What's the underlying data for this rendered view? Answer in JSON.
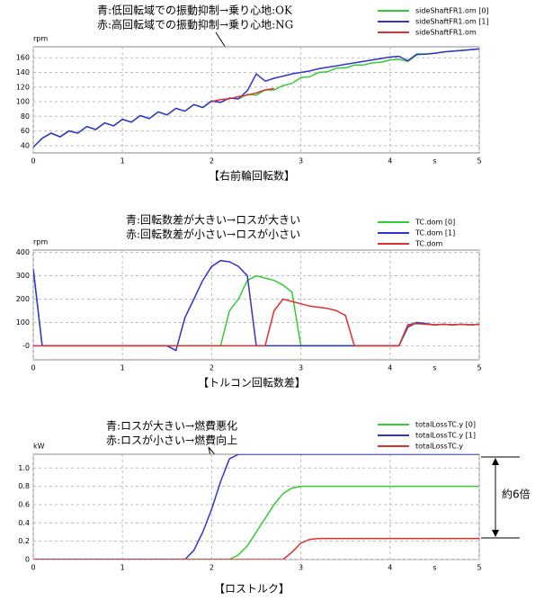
{
  "chart_data": [
    {
      "type": "line",
      "y_label": "rpm",
      "x_label": "s",
      "annotations": [
        "青:低回転域での振動抑制→乗り心地:OK",
        "赤:高回転域での振動抑制→乗り心地:NG"
      ],
      "caption": "【右前輪回転数】",
      "xlim": [
        0,
        5
      ],
      "xticks": [
        0,
        1,
        2,
        3,
        4,
        5
      ],
      "ylim": [
        30,
        175
      ],
      "yticks": [
        40,
        60,
        80,
        100,
        120,
        140,
        160
      ],
      "grid": true,
      "legend": "upper right",
      "x": [
        0,
        0.1,
        0.2,
        0.3,
        0.4,
        0.5,
        0.6,
        0.7,
        0.8,
        0.9,
        1,
        1.1,
        1.2,
        1.3,
        1.4,
        1.5,
        1.6,
        1.7,
        1.8,
        1.9,
        2,
        2.1,
        2.2,
        2.3,
        2.4,
        2.5,
        2.6,
        2.7,
        2.8,
        2.9,
        3,
        3.1,
        3.2,
        3.3,
        3.4,
        3.5,
        3.6,
        3.7,
        3.8,
        3.9,
        4,
        4.1,
        4.2,
        4.3,
        4.4,
        4.5,
        4.6,
        4.7,
        4.8,
        4.9,
        5
      ],
      "series": [
        {
          "name": "sideShaftFR1.om [0]",
          "color": "#33cc33",
          "values": [
            38,
            50,
            57,
            52,
            60,
            57,
            66,
            62,
            71,
            67,
            76,
            72,
            81,
            77,
            86,
            82,
            91,
            87,
            96,
            92,
            101,
            99,
            105,
            104,
            110,
            109,
            116,
            116,
            122,
            125,
            133,
            134,
            140,
            141,
            146,
            146,
            150,
            150,
            153,
            154,
            157,
            158,
            155,
            164,
            165,
            166,
            168,
            169,
            170,
            171,
            172
          ]
        },
        {
          "name": "sideShaftFR1.om [1]",
          "color": "#3333cc",
          "values": [
            38,
            50,
            57,
            52,
            60,
            57,
            66,
            62,
            71,
            67,
            76,
            72,
            81,
            77,
            86,
            82,
            91,
            87,
            96,
            92,
            101,
            99,
            105,
            104,
            115,
            138,
            128,
            132,
            135,
            138,
            140,
            142,
            145,
            147,
            149,
            151,
            153,
            155,
            157,
            159,
            161,
            162,
            156,
            165,
            165,
            166,
            168,
            169,
            170,
            171,
            172
          ]
        },
        {
          "name": "sideShaftFR1.om",
          "color": "#e03030",
          "values": [
            null,
            null,
            null,
            null,
            null,
            null,
            null,
            null,
            null,
            null,
            null,
            null,
            null,
            null,
            null,
            null,
            null,
            null,
            null,
            null,
            100,
            103,
            104,
            107,
            109,
            112,
            116,
            118,
            null,
            null,
            null,
            null,
            null,
            null,
            null,
            null,
            null,
            null,
            null,
            null,
            null,
            null,
            null,
            null,
            null,
            null,
            null,
            null,
            null,
            null,
            null
          ]
        }
      ]
    },
    {
      "type": "line",
      "y_label": "rpm",
      "x_label": "s",
      "annotations": [
        "青:回転数差が大きい→ロスが大きい",
        "赤:回転数差が小さい→ロスが小さい"
      ],
      "caption": "【トルコン回転数差】",
      "xlim": [
        0,
        5
      ],
      "xticks": [
        0,
        1,
        2,
        3,
        4,
        5
      ],
      "ylim": [
        -60,
        410
      ],
      "yticks": [
        {
          "value": 0,
          "label": "-0"
        },
        100,
        200,
        300,
        400
      ],
      "grid": true,
      "legend": "upper right",
      "x": [
        0,
        0.1,
        0.2,
        0.3,
        0.4,
        0.5,
        0.6,
        0.7,
        0.8,
        0.9,
        1,
        1.1,
        1.2,
        1.3,
        1.4,
        1.5,
        1.6,
        1.7,
        1.8,
        1.9,
        2,
        2.1,
        2.2,
        2.3,
        2.4,
        2.5,
        2.6,
        2.7,
        2.8,
        2.9,
        3,
        3.1,
        3.2,
        3.3,
        3.4,
        3.5,
        3.6,
        3.7,
        3.8,
        3.9,
        4,
        4.1,
        4.2,
        4.3,
        4.4,
        4.5,
        4.6,
        4.7,
        4.8,
        4.9,
        5
      ],
      "series": [
        {
          "name": "TC.dom [0]",
          "color": "#33cc33",
          "values": [
            330,
            0,
            0,
            0,
            0,
            0,
            0,
            0,
            0,
            0,
            0,
            0,
            0,
            0,
            0,
            0,
            0,
            0,
            0,
            0,
            0,
            0,
            150,
            200,
            280,
            300,
            290,
            280,
            260,
            230,
            0,
            0,
            0,
            0,
            0,
            0,
            0,
            0,
            0,
            0,
            0,
            0,
            90,
            100,
            95,
            90,
            92,
            90,
            92,
            90,
            92
          ]
        },
        {
          "name": "TC.dom [1]",
          "color": "#3333cc",
          "values": [
            330,
            0,
            0,
            0,
            0,
            0,
            0,
            0,
            0,
            0,
            0,
            0,
            0,
            0,
            0,
            0,
            -20,
            120,
            200,
            280,
            340,
            365,
            360,
            340,
            300,
            0,
            0,
            0,
            0,
            0,
            0,
            0,
            0,
            0,
            0,
            0,
            0,
            0,
            0,
            0,
            0,
            0,
            80,
            100,
            95,
            90,
            92,
            90,
            92,
            90,
            92
          ]
        },
        {
          "name": "TC.dom",
          "color": "#e03030",
          "values": [
            0,
            0,
            0,
            0,
            0,
            0,
            0,
            0,
            0,
            0,
            0,
            0,
            0,
            0,
            0,
            0,
            0,
            0,
            0,
            0,
            0,
            0,
            0,
            0,
            0,
            0,
            0,
            150,
            200,
            190,
            180,
            170,
            165,
            160,
            150,
            130,
            0,
            0,
            0,
            0,
            0,
            0,
            90,
            95,
            92,
            90,
            92,
            90,
            92,
            90,
            92
          ]
        }
      ]
    },
    {
      "type": "line",
      "y_label": "kW",
      "x_label": "s",
      "annotations": [
        "青:ロスが大きい→燃費悪化",
        "赤:ロスが小さい→燃費向上"
      ],
      "caption": "【ロストルク】",
      "side_label": "約6倍",
      "xlim": [
        0,
        5
      ],
      "xticks": [
        0,
        1,
        2,
        3,
        4,
        5
      ],
      "ylim": [
        0,
        1.15
      ],
      "yticks": [
        0,
        0.2,
        0.4,
        0.6,
        0.8,
        {
          "value": 1,
          "label": "1.0"
        }
      ],
      "grid": true,
      "legend": "upper right",
      "x": [
        0,
        0.1,
        0.2,
        0.3,
        0.4,
        0.5,
        0.6,
        0.7,
        0.8,
        0.9,
        1,
        1.1,
        1.2,
        1.3,
        1.4,
        1.5,
        1.6,
        1.7,
        1.8,
        1.9,
        2,
        2.1,
        2.2,
        2.3,
        2.4,
        2.5,
        2.6,
        2.7,
        2.8,
        2.9,
        3,
        3.1,
        3.2,
        3.3,
        3.4,
        3.5,
        3.6,
        3.7,
        3.8,
        3.9,
        4,
        4.1,
        4.2,
        4.3,
        4.4,
        4.5,
        4.6,
        4.7,
        4.8,
        4.9,
        5
      ],
      "series": [
        {
          "name": "totalLossTC.y [0]",
          "color": "#33cc33",
          "values": [
            0,
            0,
            0,
            0,
            0,
            0,
            0,
            0,
            0,
            0,
            0,
            0,
            0,
            0,
            0,
            0,
            0,
            0,
            0,
            0,
            0,
            0,
            0,
            0.05,
            0.15,
            0.3,
            0.45,
            0.6,
            0.72,
            0.78,
            0.8,
            0.8,
            0.8,
            0.8,
            0.8,
            0.8,
            0.8,
            0.8,
            0.8,
            0.8,
            0.8,
            0.8,
            0.8,
            0.8,
            0.8,
            0.8,
            0.8,
            0.8,
            0.8,
            0.8,
            0.8
          ]
        },
        {
          "name": "totalLossTC.y [1]",
          "color": "#3333cc",
          "values": [
            0,
            0,
            0,
            0,
            0,
            0,
            0,
            0,
            0,
            0,
            0,
            0,
            0,
            0,
            0,
            0,
            0,
            0,
            0.1,
            0.3,
            0.55,
            0.85,
            1.1,
            1.15,
            1.15,
            1.15,
            1.15,
            1.15,
            1.15,
            1.15,
            1.15,
            1.15,
            1.15,
            1.15,
            1.15,
            1.15,
            1.15,
            1.15,
            1.15,
            1.15,
            1.15,
            1.15,
            1.15,
            1.15,
            1.15,
            1.15,
            1.15,
            1.15,
            1.15,
            1.15,
            1.15
          ]
        },
        {
          "name": "totalLossTC.y",
          "color": "#e03030",
          "values": [
            0,
            0,
            0,
            0,
            0,
            0,
            0,
            0,
            0,
            0,
            0,
            0,
            0,
            0,
            0,
            0,
            0,
            0,
            0,
            0,
            0,
            0,
            0,
            0,
            0,
            0,
            0,
            0,
            0,
            0.08,
            0.18,
            0.22,
            0.23,
            0.23,
            0.23,
            0.23,
            0.23,
            0.23,
            0.23,
            0.23,
            0.23,
            0.23,
            0.23,
            0.23,
            0.23,
            0.23,
            0.23,
            0.23,
            0.23,
            0.23,
            0.23
          ]
        }
      ]
    }
  ]
}
